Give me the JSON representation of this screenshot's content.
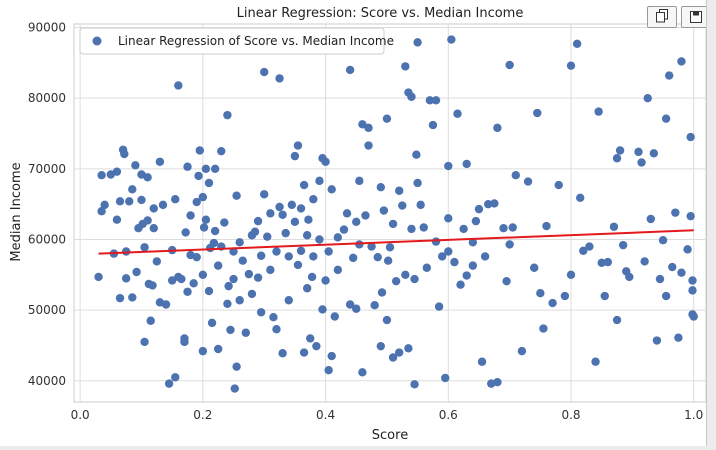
{
  "toolbar": {
    "copy_icon": "copy-icon",
    "save_icon": "save-icon"
  },
  "chart_data": {
    "type": "scatter",
    "title": "Linear Regression: Score vs. Median Income",
    "xlabel": "Score",
    "ylabel": "Median Income",
    "xlim": [
      -0.01,
      1.02
    ],
    "ylim": [
      37000,
      90500
    ],
    "xticks": [
      0.0,
      0.2,
      0.4,
      0.6,
      0.8,
      1.0
    ],
    "xtick_labels": [
      "0.0",
      "0.2",
      "0.4",
      "0.6",
      "0.8",
      "1.0"
    ],
    "yticks": [
      40000,
      50000,
      60000,
      70000,
      80000,
      90000
    ],
    "ytick_labels": [
      "40000",
      "50000",
      "60000",
      "70000",
      "80000",
      "90000"
    ],
    "grid": true,
    "legend": {
      "placement": "top-left",
      "entries": [
        "Linear Regression of Score vs. Median Income"
      ]
    },
    "colors": {
      "points": "#4c72b0",
      "regression_line": "#e31a1c",
      "grid": "#dddddd"
    },
    "series": [
      {
        "name": "Linear Regression of Score vs. Median Income",
        "kind": "scatter",
        "points": [
          [
            0.03,
            54700
          ],
          [
            0.035,
            64000
          ],
          [
            0.035,
            69100
          ],
          [
            0.04,
            64900
          ],
          [
            0.05,
            69200
          ],
          [
            0.055,
            58000
          ],
          [
            0.06,
            62800
          ],
          [
            0.06,
            69600
          ],
          [
            0.065,
            65400
          ],
          [
            0.065,
            51700
          ],
          [
            0.07,
            72700
          ],
          [
            0.072,
            72100
          ],
          [
            0.075,
            54500
          ],
          [
            0.075,
            58300
          ],
          [
            0.08,
            65400
          ],
          [
            0.085,
            67100
          ],
          [
            0.085,
            51800
          ],
          [
            0.09,
            70500
          ],
          [
            0.092,
            55400
          ],
          [
            0.095,
            61600
          ],
          [
            0.1,
            69200
          ],
          [
            0.1,
            65600
          ],
          [
            0.102,
            62200
          ],
          [
            0.105,
            58900
          ],
          [
            0.105,
            45500
          ],
          [
            0.11,
            68800
          ],
          [
            0.11,
            62700
          ],
          [
            0.112,
            53700
          ],
          [
            0.115,
            48500
          ],
          [
            0.118,
            53500
          ],
          [
            0.12,
            61600
          ],
          [
            0.12,
            64400
          ],
          [
            0.125,
            56900
          ],
          [
            0.13,
            71000
          ],
          [
            0.13,
            51100
          ],
          [
            0.135,
            64900
          ],
          [
            0.14,
            50800
          ],
          [
            0.145,
            39600
          ],
          [
            0.15,
            58500
          ],
          [
            0.15,
            54200
          ],
          [
            0.155,
            65700
          ],
          [
            0.155,
            40500
          ],
          [
            0.16,
            81800
          ],
          [
            0.16,
            54700
          ],
          [
            0.165,
            54400
          ],
          [
            0.17,
            45500
          ],
          [
            0.17,
            46000
          ],
          [
            0.172,
            61000
          ],
          [
            0.175,
            70300
          ],
          [
            0.175,
            52600
          ],
          [
            0.18,
            63400
          ],
          [
            0.18,
            57800
          ],
          [
            0.185,
            53800
          ],
          [
            0.19,
            65300
          ],
          [
            0.19,
            57500
          ],
          [
            0.193,
            69000
          ],
          [
            0.195,
            72600
          ],
          [
            0.2,
            66000
          ],
          [
            0.2,
            44200
          ],
          [
            0.2,
            55000
          ],
          [
            0.202,
            61700
          ],
          [
            0.205,
            70000
          ],
          [
            0.205,
            62800
          ],
          [
            0.21,
            68000
          ],
          [
            0.21,
            52700
          ],
          [
            0.212,
            58800
          ],
          [
            0.215,
            48200
          ],
          [
            0.218,
            59500
          ],
          [
            0.22,
            61200
          ],
          [
            0.22,
            70000
          ],
          [
            0.225,
            44500
          ],
          [
            0.225,
            56300
          ],
          [
            0.23,
            72500
          ],
          [
            0.23,
            59000
          ],
          [
            0.235,
            62400
          ],
          [
            0.24,
            77600
          ],
          [
            0.24,
            50900
          ],
          [
            0.242,
            53400
          ],
          [
            0.245,
            47200
          ],
          [
            0.25,
            54400
          ],
          [
            0.25,
            58300
          ],
          [
            0.252,
            38900
          ],
          [
            0.255,
            66200
          ],
          [
            0.255,
            42000
          ],
          [
            0.26,
            59600
          ],
          [
            0.26,
            51400
          ],
          [
            0.265,
            57000
          ],
          [
            0.27,
            46800
          ],
          [
            0.275,
            55100
          ],
          [
            0.28,
            60600
          ],
          [
            0.28,
            52300
          ],
          [
            0.285,
            61100
          ],
          [
            0.29,
            62600
          ],
          [
            0.29,
            54600
          ],
          [
            0.295,
            57700
          ],
          [
            0.295,
            49700
          ],
          [
            0.3,
            66400
          ],
          [
            0.3,
            83700
          ],
          [
            0.305,
            60400
          ],
          [
            0.31,
            63700
          ],
          [
            0.31,
            55700
          ],
          [
            0.315,
            49000
          ],
          [
            0.32,
            58300
          ],
          [
            0.32,
            47300
          ],
          [
            0.325,
            64600
          ],
          [
            0.325,
            82800
          ],
          [
            0.33,
            63500
          ],
          [
            0.33,
            43900
          ],
          [
            0.335,
            60900
          ],
          [
            0.34,
            57600
          ],
          [
            0.34,
            51400
          ],
          [
            0.345,
            64900
          ],
          [
            0.35,
            71800
          ],
          [
            0.35,
            62500
          ],
          [
            0.355,
            73300
          ],
          [
            0.355,
            56400
          ],
          [
            0.36,
            64400
          ],
          [
            0.36,
            58400
          ],
          [
            0.365,
            67700
          ],
          [
            0.365,
            44000
          ],
          [
            0.37,
            60600
          ],
          [
            0.37,
            53100
          ],
          [
            0.372,
            62800
          ],
          [
            0.375,
            46000
          ],
          [
            0.378,
            54700
          ],
          [
            0.38,
            65700
          ],
          [
            0.38,
            57600
          ],
          [
            0.385,
            44900
          ],
          [
            0.39,
            68300
          ],
          [
            0.39,
            60000
          ],
          [
            0.395,
            71500
          ],
          [
            0.395,
            50100
          ],
          [
            0.4,
            71000
          ],
          [
            0.4,
            54200
          ],
          [
            0.405,
            41500
          ],
          [
            0.405,
            58300
          ],
          [
            0.41,
            43500
          ],
          [
            0.41,
            67100
          ],
          [
            0.415,
            49100
          ],
          [
            0.42,
            55700
          ],
          [
            0.42,
            60300
          ],
          [
            0.43,
            61400
          ],
          [
            0.435,
            63700
          ],
          [
            0.44,
            84000
          ],
          [
            0.44,
            50800
          ],
          [
            0.445,
            57400
          ],
          [
            0.45,
            62500
          ],
          [
            0.45,
            50200
          ],
          [
            0.455,
            68300
          ],
          [
            0.455,
            59300
          ],
          [
            0.46,
            76300
          ],
          [
            0.46,
            41200
          ],
          [
            0.465,
            63400
          ],
          [
            0.47,
            75800
          ],
          [
            0.47,
            73300
          ],
          [
            0.475,
            59000
          ],
          [
            0.48,
            50700
          ],
          [
            0.485,
            57500
          ],
          [
            0.49,
            67400
          ],
          [
            0.49,
            44900
          ],
          [
            0.492,
            52500
          ],
          [
            0.495,
            64100
          ],
          [
            0.5,
            77100
          ],
          [
            0.5,
            48600
          ],
          [
            0.502,
            57000
          ],
          [
            0.505,
            58900
          ],
          [
            0.51,
            62200
          ],
          [
            0.51,
            43300
          ],
          [
            0.515,
            54100
          ],
          [
            0.52,
            66900
          ],
          [
            0.52,
            44000
          ],
          [
            0.525,
            64800
          ],
          [
            0.53,
            84500
          ],
          [
            0.53,
            55000
          ],
          [
            0.535,
            80800
          ],
          [
            0.535,
            44600
          ],
          [
            0.54,
            80200
          ],
          [
            0.54,
            61500
          ],
          [
            0.545,
            54400
          ],
          [
            0.545,
            39500
          ],
          [
            0.548,
            72000
          ],
          [
            0.55,
            87900
          ],
          [
            0.55,
            68000
          ],
          [
            0.555,
            64900
          ],
          [
            0.56,
            61700
          ],
          [
            0.565,
            56000
          ],
          [
            0.57,
            79700
          ],
          [
            0.575,
            76200
          ],
          [
            0.58,
            79700
          ],
          [
            0.58,
            59700
          ],
          [
            0.585,
            50500
          ],
          [
            0.59,
            57600
          ],
          [
            0.595,
            40400
          ],
          [
            0.6,
            70400
          ],
          [
            0.6,
            63000
          ],
          [
            0.6,
            58300
          ],
          [
            0.605,
            88300
          ],
          [
            0.61,
            56800
          ],
          [
            0.615,
            77800
          ],
          [
            0.62,
            53600
          ],
          [
            0.625,
            61500
          ],
          [
            0.63,
            70700
          ],
          [
            0.63,
            54900
          ],
          [
            0.64,
            59600
          ],
          [
            0.64,
            56300
          ],
          [
            0.645,
            62600
          ],
          [
            0.65,
            64300
          ],
          [
            0.655,
            42700
          ],
          [
            0.66,
            57600
          ],
          [
            0.665,
            65000
          ],
          [
            0.67,
            39600
          ],
          [
            0.675,
            65100
          ],
          [
            0.68,
            75800
          ],
          [
            0.68,
            39800
          ],
          [
            0.69,
            61600
          ],
          [
            0.695,
            54100
          ],
          [
            0.7,
            84700
          ],
          [
            0.7,
            59300
          ],
          [
            0.705,
            61700
          ],
          [
            0.71,
            69100
          ],
          [
            0.72,
            44200
          ],
          [
            0.73,
            68200
          ],
          [
            0.74,
            56000
          ],
          [
            0.745,
            77900
          ],
          [
            0.75,
            52400
          ],
          [
            0.755,
            47400
          ],
          [
            0.76,
            61900
          ],
          [
            0.77,
            51000
          ],
          [
            0.78,
            67700
          ],
          [
            0.79,
            52000
          ],
          [
            0.8,
            84600
          ],
          [
            0.8,
            55000
          ],
          [
            0.81,
            87700
          ],
          [
            0.815,
            65900
          ],
          [
            0.82,
            58400
          ],
          [
            0.83,
            59000
          ],
          [
            0.84,
            42700
          ],
          [
            0.845,
            78100
          ],
          [
            0.85,
            56700
          ],
          [
            0.855,
            52000
          ],
          [
            0.86,
            56800
          ],
          [
            0.87,
            61800
          ],
          [
            0.875,
            48600
          ],
          [
            0.875,
            71500
          ],
          [
            0.88,
            72600
          ],
          [
            0.885,
            59200
          ],
          [
            0.89,
            55500
          ],
          [
            0.895,
            54700
          ],
          [
            0.91,
            72400
          ],
          [
            0.915,
            70900
          ],
          [
            0.92,
            56900
          ],
          [
            0.925,
            80000
          ],
          [
            0.93,
            62900
          ],
          [
            0.935,
            72200
          ],
          [
            0.94,
            45700
          ],
          [
            0.945,
            54400
          ],
          [
            0.95,
            59900
          ],
          [
            0.955,
            52000
          ],
          [
            0.955,
            77100
          ],
          [
            0.96,
            83200
          ],
          [
            0.965,
            56100
          ],
          [
            0.97,
            63800
          ],
          [
            0.975,
            46100
          ],
          [
            0.98,
            85200
          ],
          [
            0.98,
            55300
          ],
          [
            0.99,
            58600
          ],
          [
            0.995,
            74500
          ],
          [
            0.995,
            63300
          ],
          [
            0.998,
            54200
          ],
          [
            0.998,
            49400
          ],
          [
            0.998,
            52800
          ],
          [
            1.0,
            49100
          ]
        ]
      },
      {
        "name": "",
        "kind": "line",
        "points": [
          [
            0.03,
            58000
          ],
          [
            1.0,
            61300
          ]
        ]
      }
    ]
  }
}
